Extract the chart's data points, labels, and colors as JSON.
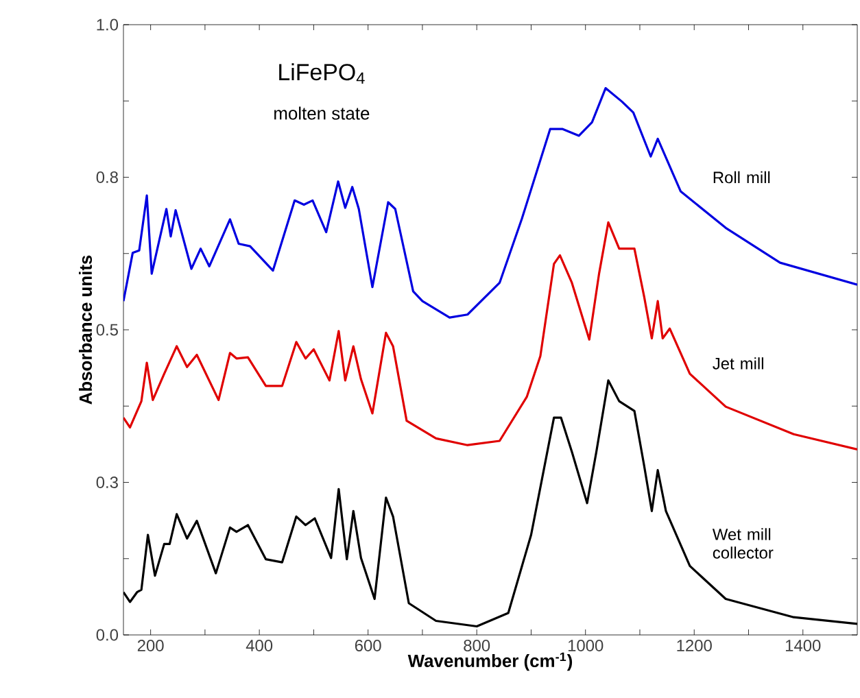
{
  "chart_data": {
    "type": "line",
    "xlabel": "Wavenumber (cm$^{-1}$)",
    "ylabel": "Absorbance units",
    "annotations": [
      "LiFePO$_{4}$",
      "molten state"
    ],
    "xlim": [
      150,
      1500
    ],
    "xticks": [
      200,
      {
        "value": 300,
        "label": null
      },
      400,
      {
        "value": 500,
        "label": null
      },
      600,
      {
        "value": 700,
        "label": null
      },
      800,
      {
        "value": 900,
        "label": null
      },
      1000,
      {
        "value": 1100,
        "label": null
      },
      1200,
      {
        "value": 1300,
        "label": null
      },
      1400
    ],
    "ylim": [
      0,
      1
    ],
    "yticks": [
      {
        "value": 0,
        "label": "0.0"
      },
      {
        "value": 0.125,
        "label": null
      },
      {
        "value": 0.25,
        "label": "0.3"
      },
      {
        "value": 0.375,
        "label": null
      },
      {
        "value": 0.5,
        "label": "0.5"
      },
      {
        "value": 0.625,
        "label": null
      },
      {
        "value": 0.75,
        "label": "0.8"
      },
      {
        "value": 0.875,
        "label": null
      },
      {
        "value": 1,
        "label": "1.0"
      }
    ],
    "grid": false,
    "marker": "none",
    "line_style": "solid",
    "series": [
      {
        "name": "Roll mill",
        "color": "#0000e0",
        "x": [
          150,
          167,
          179,
          193,
          202,
          229,
          237,
          246,
          275,
          292,
          308,
          346,
          362,
          383,
          425,
          465,
          482,
          498,
          523,
          545,
          558,
          571,
          583,
          608,
          637,
          650,
          683,
          700,
          750,
          783,
          842,
          883,
          935,
          958,
          988,
          1012,
          1037,
          1067,
          1088,
          1120,
          1133,
          1175,
          1258,
          1358,
          1500
        ],
        "values": [
          0.547,
          0.626,
          0.63,
          0.72,
          0.592,
          0.698,
          0.653,
          0.696,
          0.6,
          0.633,
          0.604,
          0.681,
          0.641,
          0.637,
          0.597,
          0.712,
          0.705,
          0.712,
          0.66,
          0.743,
          0.7,
          0.734,
          0.698,
          0.57,
          0.709,
          0.698,
          0.563,
          0.547,
          0.52,
          0.525,
          0.577,
          0.682,
          0.829,
          0.829,
          0.818,
          0.84,
          0.896,
          0.874,
          0.856,
          0.784,
          0.813,
          0.727,
          0.667,
          0.61,
          0.574
        ]
      },
      {
        "name": "Jet mill",
        "color": "#e00000",
        "x": [
          150,
          162,
          183,
          193,
          204,
          225,
          248,
          267,
          285,
          325,
          346,
          358,
          379,
          412,
          442,
          468,
          485,
          500,
          529,
          546,
          558,
          573,
          587,
          608,
          633,
          646,
          671,
          725,
          783,
          842,
          892,
          917,
          942,
          953,
          975,
          1007,
          1025,
          1042,
          1062,
          1090,
          1108,
          1122,
          1133,
          1142,
          1155,
          1192,
          1258,
          1383,
          1500
        ],
        "values": [
          0.356,
          0.34,
          0.383,
          0.446,
          0.385,
          0.428,
          0.473,
          0.439,
          0.459,
          0.385,
          0.462,
          0.453,
          0.455,
          0.408,
          0.408,
          0.48,
          0.453,
          0.468,
          0.417,
          0.498,
          0.417,
          0.473,
          0.419,
          0.363,
          0.495,
          0.473,
          0.351,
          0.322,
          0.311,
          0.318,
          0.39,
          0.457,
          0.608,
          0.622,
          0.577,
          0.484,
          0.592,
          0.676,
          0.633,
          0.633,
          0.554,
          0.486,
          0.547,
          0.486,
          0.502,
          0.428,
          0.374,
          0.329,
          0.304
        ]
      },
      {
        "name": "Wet mill collector",
        "color": "#000000",
        "x": [
          150,
          162,
          175,
          183,
          195,
          208,
          225,
          235,
          248,
          267,
          285,
          320,
          346,
          358,
          379,
          412,
          442,
          468,
          485,
          502,
          532,
          546,
          561,
          573,
          587,
          612,
          633,
          646,
          675,
          725,
          800,
          858,
          900,
          942,
          955,
          975,
          1003,
          1020,
          1042,
          1062,
          1090,
          1108,
          1122,
          1133,
          1148,
          1192,
          1258,
          1383,
          1500
        ],
        "values": [
          0.07,
          0.054,
          0.07,
          0.074,
          0.164,
          0.097,
          0.149,
          0.149,
          0.198,
          0.158,
          0.187,
          0.101,
          0.176,
          0.169,
          0.18,
          0.124,
          0.119,
          0.194,
          0.18,
          0.191,
          0.126,
          0.239,
          0.124,
          0.203,
          0.126,
          0.059,
          0.225,
          0.194,
          0.052,
          0.023,
          0.014,
          0.036,
          0.164,
          0.356,
          0.356,
          0.3,
          0.216,
          0.3,
          0.417,
          0.383,
          0.367,
          0.277,
          0.203,
          0.27,
          0.203,
          0.113,
          0.059,
          0.029,
          0.018
        ]
      }
    ]
  }
}
